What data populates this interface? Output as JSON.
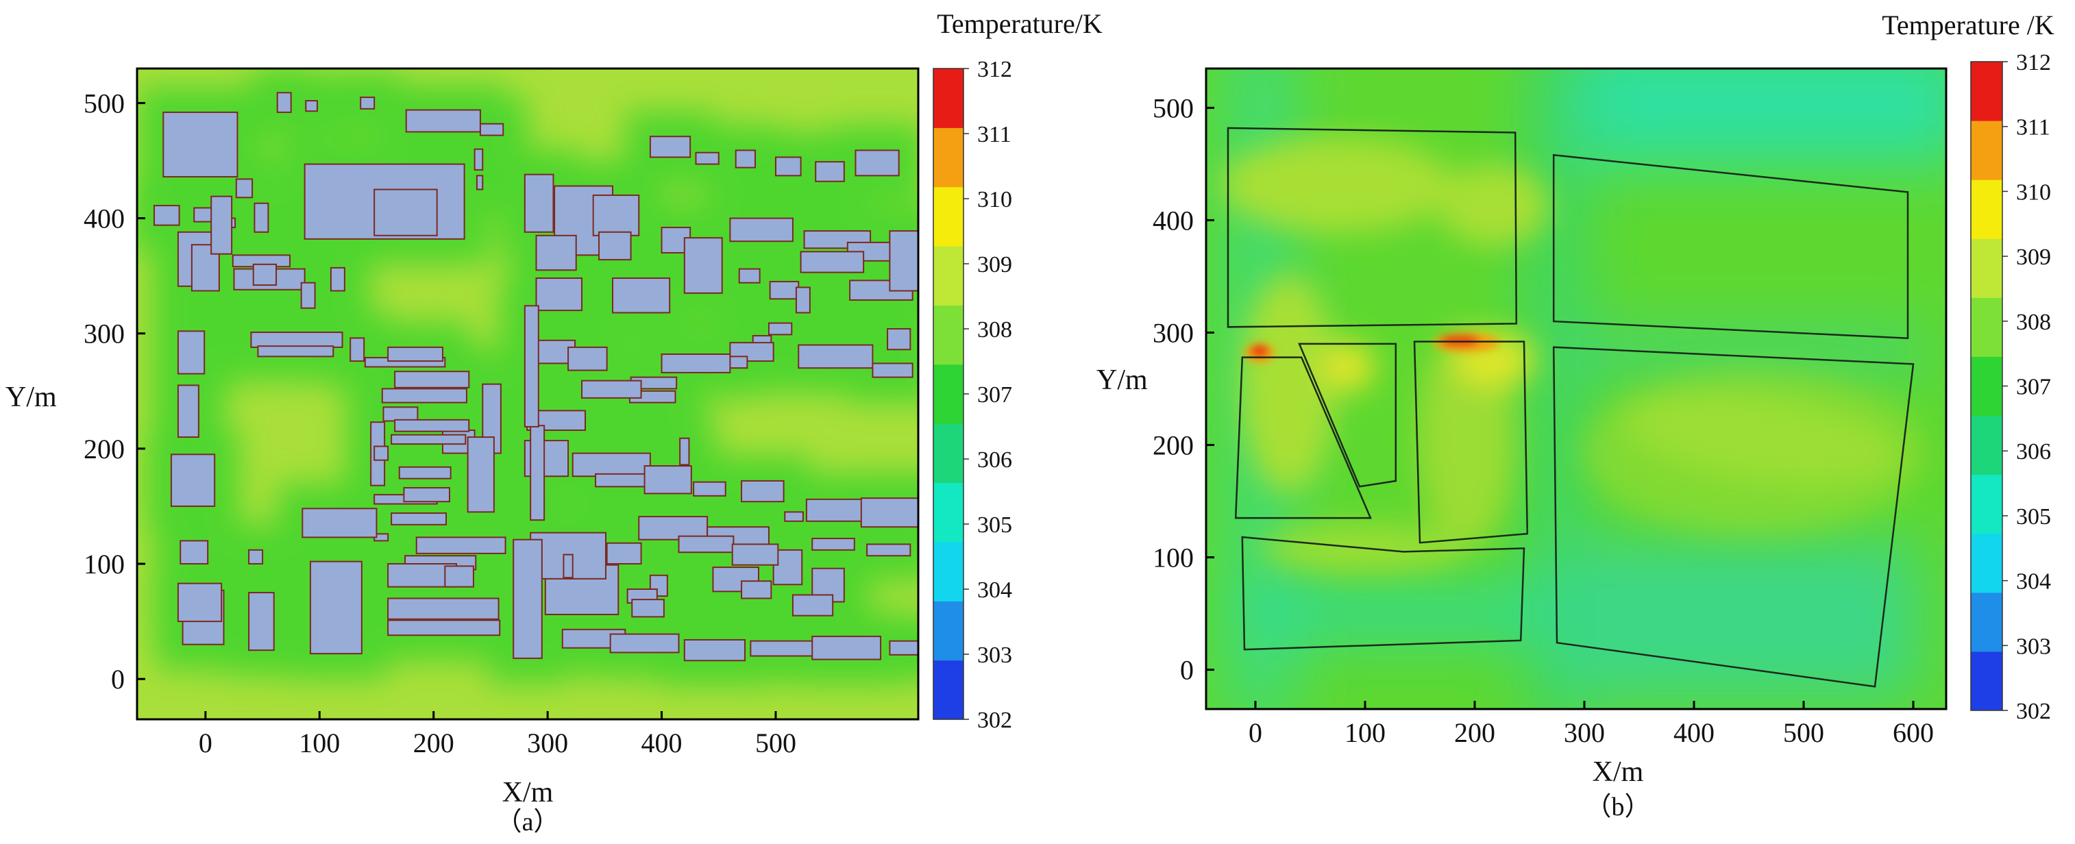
{
  "chart_data": [
    {
      "type": "heatmap",
      "panel_label": "（a）",
      "xlabel": "X/m",
      "ylabel": "Y/m",
      "xticks": [
        0,
        100,
        200,
        300,
        400,
        500
      ],
      "yticks": [
        0,
        100,
        200,
        300,
        400,
        500
      ],
      "xlim": [
        -60,
        625
      ],
      "ylim": [
        -35,
        530
      ],
      "colorbar": {
        "title": "Temperature/K",
        "min": 302,
        "max": 312,
        "ticks": [
          312,
          311,
          310,
          309,
          308,
          307,
          306,
          305,
          304,
          303,
          302
        ],
        "colors": [
          "#1f3fe6",
          "#1f8ee8",
          "#12d6ee",
          "#12e8c2",
          "#1dd67a",
          "#2ed334",
          "#7de037",
          "#bfe836",
          "#f5ec0c",
          "#f5a010",
          "#e81c16"
        ]
      },
      "background_level": 308.6,
      "halo_level": 307.5,
      "building_color": "#98acd8",
      "buildings": [
        [
          -37,
          436,
          65,
          56
        ],
        [
          -45,
          394,
          22,
          17
        ],
        [
          -24,
          341,
          31,
          47
        ],
        [
          -12,
          337,
          24,
          40
        ],
        [
          -10,
          397,
          20,
          12
        ],
        [
          27,
          418,
          14,
          16
        ],
        [
          43,
          388,
          12,
          25
        ],
        [
          18,
          392,
          8,
          8
        ],
        [
          63,
          492,
          12,
          17
        ],
        [
          88,
          493,
          10,
          9
        ],
        [
          136,
          495,
          12,
          10
        ],
        [
          176,
          475,
          65,
          19
        ],
        [
          241,
          472,
          20,
          10
        ],
        [
          236,
          442,
          7,
          18
        ],
        [
          238,
          425,
          5,
          12
        ],
        [
          87,
          382,
          140,
          65
        ],
        [
          148,
          385,
          55,
          40
        ],
        [
          140,
          271,
          70,
          8
        ],
        [
          5,
          369,
          18,
          50
        ],
        [
          24,
          358,
          50,
          10
        ],
        [
          25,
          338,
          62,
          18
        ],
        [
          84,
          322,
          12,
          22
        ],
        [
          110,
          337,
          12,
          20
        ],
        [
          42,
          342,
          20,
          18
        ],
        [
          40,
          288,
          80,
          13
        ],
        [
          46,
          280,
          66,
          9
        ],
        [
          127,
          276,
          12,
          20
        ],
        [
          160,
          276,
          48,
          12
        ],
        [
          166,
          253,
          65,
          14
        ],
        [
          155,
          240,
          74,
          12
        ],
        [
          208,
          196,
          28,
          20
        ],
        [
          145,
          168,
          12,
          55
        ],
        [
          156,
          224,
          30,
          12
        ],
        [
          166,
          215,
          65,
          10
        ],
        [
          163,
          204,
          65,
          8
        ],
        [
          148,
          190,
          12,
          12
        ],
        [
          170,
          174,
          45,
          10
        ],
        [
          148,
          152,
          55,
          8
        ],
        [
          174,
          154,
          40,
          12
        ],
        [
          163,
          134,
          48,
          10
        ],
        [
          148,
          120,
          12,
          6
        ],
        [
          185,
          109,
          78,
          14
        ],
        [
          175,
          95,
          62,
          12
        ],
        [
          160,
          80,
          60,
          20
        ],
        [
          210,
          80,
          25,
          18
        ],
        [
          160,
          52,
          97,
          18
        ],
        [
          160,
          38,
          98,
          13
        ],
        [
          243,
          196,
          16,
          60
        ],
        [
          230,
          145,
          23,
          65
        ],
        [
          -24,
          265,
          23,
          37
        ],
        [
          -24,
          210,
          18,
          45
        ],
        [
          -30,
          150,
          38,
          45
        ],
        [
          -22,
          100,
          24,
          20
        ],
        [
          38,
          100,
          12,
          12
        ],
        [
          -20,
          30,
          36,
          47
        ],
        [
          38,
          25,
          22,
          50
        ],
        [
          92,
          22,
          45,
          80
        ],
        [
          85,
          123,
          65,
          25
        ],
        [
          -24,
          50,
          38,
          33
        ],
        [
          306,
          368,
          51,
          60
        ],
        [
          280,
          388,
          25,
          50
        ],
        [
          340,
          385,
          40,
          35
        ],
        [
          290,
          355,
          35,
          30
        ],
        [
          345,
          364,
          28,
          24
        ],
        [
          357,
          318,
          50,
          30
        ],
        [
          290,
          320,
          40,
          28
        ],
        [
          390,
          453,
          35,
          18
        ],
        [
          430,
          447,
          20,
          10
        ],
        [
          465,
          444,
          17,
          15
        ],
        [
          500,
          437,
          22,
          16
        ],
        [
          535,
          432,
          25,
          17
        ],
        [
          570,
          437,
          38,
          22
        ],
        [
          400,
          370,
          25,
          22
        ],
        [
          420,
          335,
          33,
          48
        ],
        [
          460,
          380,
          55,
          20
        ],
        [
          525,
          374,
          58,
          15
        ],
        [
          563,
          363,
          54,
          16
        ],
        [
          522,
          353,
          55,
          18
        ],
        [
          495,
          330,
          25,
          15
        ],
        [
          565,
          329,
          55,
          17
        ],
        [
          600,
          337,
          40,
          52
        ],
        [
          468,
          344,
          18,
          12
        ],
        [
          518,
          318,
          12,
          22
        ],
        [
          494,
          299,
          20,
          10
        ],
        [
          480,
          289,
          16,
          9
        ],
        [
          460,
          276,
          38,
          16
        ],
        [
          440,
          270,
          35,
          10
        ],
        [
          400,
          266,
          60,
          16
        ],
        [
          520,
          270,
          65,
          20
        ],
        [
          598,
          286,
          20,
          18
        ],
        [
          585,
          262,
          35,
          12
        ],
        [
          290,
          274,
          34,
          20
        ],
        [
          318,
          268,
          34,
          20
        ],
        [
          373,
          252,
          40,
          10
        ],
        [
          372,
          240,
          40,
          10
        ],
        [
          330,
          244,
          52,
          15
        ],
        [
          282,
          216,
          51,
          17
        ],
        [
          280,
          176,
          38,
          31
        ],
        [
          322,
          176,
          68,
          20
        ],
        [
          342,
          167,
          48,
          11
        ],
        [
          385,
          161,
          41,
          24
        ],
        [
          428,
          159,
          28,
          12
        ],
        [
          470,
          154,
          37,
          18
        ],
        [
          508,
          137,
          16,
          8
        ],
        [
          416,
          186,
          8,
          23
        ],
        [
          380,
          121,
          60,
          20
        ],
        [
          440,
          111,
          54,
          21
        ],
        [
          352,
          100,
          30,
          18
        ],
        [
          390,
          72,
          15,
          18
        ],
        [
          445,
          76,
          40,
          21
        ],
        [
          498,
          82,
          25,
          30
        ],
        [
          532,
          67,
          28,
          29
        ],
        [
          527,
          137,
          55,
          19
        ],
        [
          575,
          132,
          62,
          25
        ],
        [
          532,
          112,
          37,
          10
        ],
        [
          580,
          107,
          38,
          10
        ],
        [
          298,
          56,
          64,
          43
        ],
        [
          285,
          87,
          66,
          40
        ],
        [
          313,
          27,
          55,
          16
        ],
        [
          355,
          23,
          60,
          16
        ],
        [
          420,
          16,
          53,
          18
        ],
        [
          478,
          20,
          55,
          13
        ],
        [
          532,
          17,
          60,
          20
        ],
        [
          600,
          21,
          34,
          12
        ],
        [
          370,
          66,
          26,
          12
        ],
        [
          374,
          54,
          28,
          15
        ],
        [
          285,
          138,
          12,
          82
        ],
        [
          270,
          18,
          25,
          103
        ],
        [
          280,
          219,
          12,
          105
        ],
        [
          314,
          88,
          8,
          20
        ],
        [
          415,
          110,
          48,
          14
        ],
        [
          462,
          99,
          40,
          18
        ],
        [
          470,
          70,
          26,
          15
        ],
        [
          515,
          55,
          35,
          18
        ]
      ]
    },
    {
      "type": "heatmap",
      "panel_label": "（b）",
      "xlabel": "X/m",
      "ylabel": "Y/m",
      "xticks": [
        0,
        100,
        200,
        300,
        400,
        500,
        600
      ],
      "yticks": [
        0,
        100,
        200,
        300,
        400,
        500
      ],
      "xlim": [
        -45,
        630
      ],
      "ylim": [
        -35,
        535
      ],
      "colorbar": {
        "title": "Temperature /K",
        "min": 302,
        "max": 312,
        "ticks": [
          312,
          311,
          310,
          309,
          308,
          307,
          306,
          305,
          304,
          303,
          302
        ],
        "colors": [
          "#1f3fe6",
          "#1f8ee8",
          "#12d6ee",
          "#12e8c2",
          "#1dd67a",
          "#2ed334",
          "#7de037",
          "#bfe836",
          "#f5ec0c",
          "#f5a010",
          "#e81c16"
        ]
      },
      "blocks": [
        [
          [
            -25,
            482
          ],
          [
            237,
            478
          ],
          [
            238,
            308
          ],
          [
            -25,
            305
          ]
        ],
        [
          [
            -12,
            278
          ],
          [
            42,
            278
          ],
          [
            105,
            135
          ],
          [
            -18,
            135
          ]
        ],
        [
          [
            40,
            290
          ],
          [
            128,
            290
          ],
          [
            128,
            168
          ],
          [
            95,
            163
          ]
        ],
        [
          [
            145,
            292
          ],
          [
            245,
            292
          ],
          [
            248,
            121
          ],
          [
            150,
            113
          ]
        ],
        [
          [
            -12,
            118
          ],
          [
            135,
            105
          ],
          [
            245,
            108
          ],
          [
            242,
            26
          ],
          [
            -10,
            18
          ]
        ],
        [
          [
            272,
            458
          ],
          [
            595,
            425
          ],
          [
            595,
            295
          ],
          [
            272,
            310
          ]
        ],
        [
          [
            272,
            287
          ],
          [
            600,
            272
          ],
          [
            565,
            -15
          ],
          [
            275,
            24
          ]
        ]
      ]
    }
  ]
}
